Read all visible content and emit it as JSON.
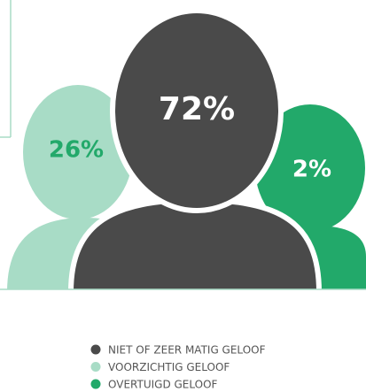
{
  "chart_data": {
    "type": "pictogram",
    "categories": [
      "NIET OF ZEER MATIG GELOOF",
      "VOORZICHTIG GELOOF",
      "OVERTUIGD GELOOF"
    ],
    "values": [
      72,
      26,
      2
    ],
    "value_labels": [
      "72%",
      "26%",
      "2%"
    ],
    "colors": [
      "#4a4a4a",
      "#a8dcc6",
      "#22a96a"
    ]
  }
}
